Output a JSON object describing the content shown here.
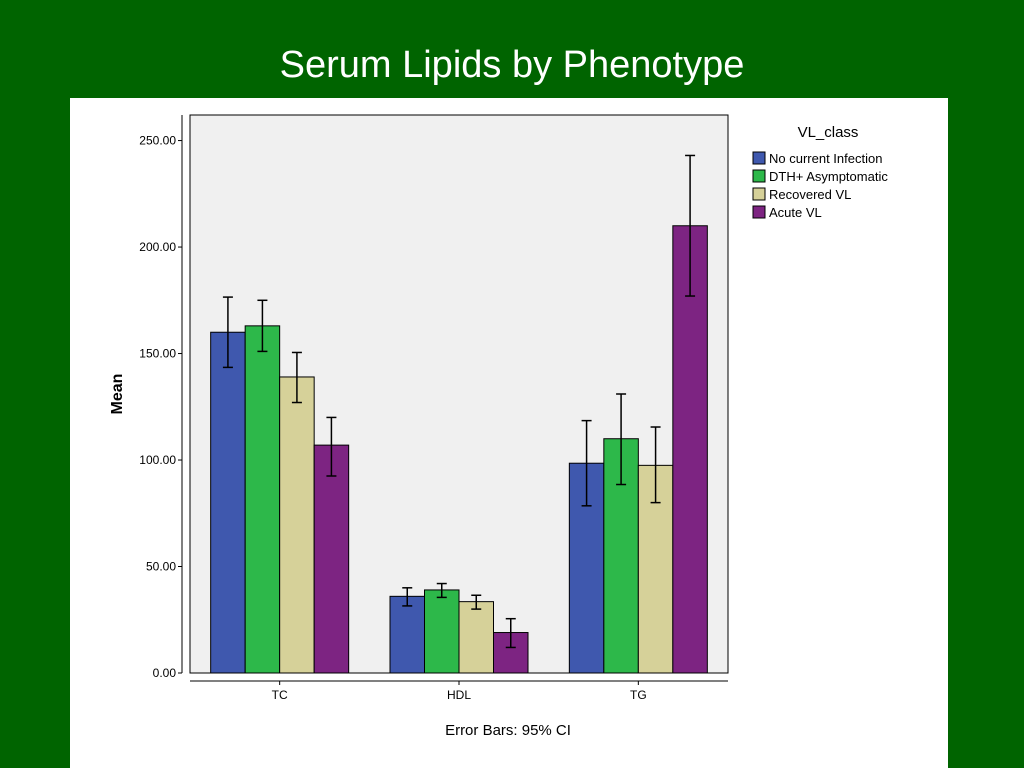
{
  "slide": {
    "title": "Serum Lipids by Phenotype"
  },
  "chart_data": {
    "type": "bar",
    "title": "",
    "xlabel": "",
    "ylabel": "Mean",
    "ylim": [
      0,
      262
    ],
    "yticks": [
      0,
      50,
      100,
      150,
      200,
      250
    ],
    "ytick_labels": [
      "0.00",
      "50.00",
      "100.00",
      "150.00",
      "200.00",
      "250.00"
    ],
    "categories": [
      "TC",
      "HDL",
      "TG"
    ],
    "legend_title": "VL_class",
    "legend_position": "top-right",
    "grid": false,
    "footnote": "Error Bars: 95% CI",
    "series": [
      {
        "name": "No current Infection",
        "color": "#3F58AE",
        "values": [
          160,
          36,
          98.5
        ],
        "ci_low": [
          143.5,
          31.5,
          78.5
        ],
        "ci_high": [
          176.5,
          40,
          118.5
        ]
      },
      {
        "name": "DTH+ Asymptomatic",
        "color": "#2DB84A",
        "values": [
          163,
          39,
          110
        ],
        "ci_low": [
          151,
          35.5,
          88.5
        ],
        "ci_high": [
          175,
          42,
          131
        ]
      },
      {
        "name": "Recovered VL",
        "color": "#D6D199",
        "values": [
          139,
          33.5,
          97.5
        ],
        "ci_low": [
          127,
          30,
          80
        ],
        "ci_high": [
          150.5,
          36.5,
          115.5
        ]
      },
      {
        "name": "Acute VL",
        "color": "#7D2482",
        "values": [
          107,
          19,
          210
        ],
        "ci_low": [
          92.5,
          12,
          177
        ],
        "ci_high": [
          120,
          25.5,
          243
        ]
      }
    ]
  }
}
